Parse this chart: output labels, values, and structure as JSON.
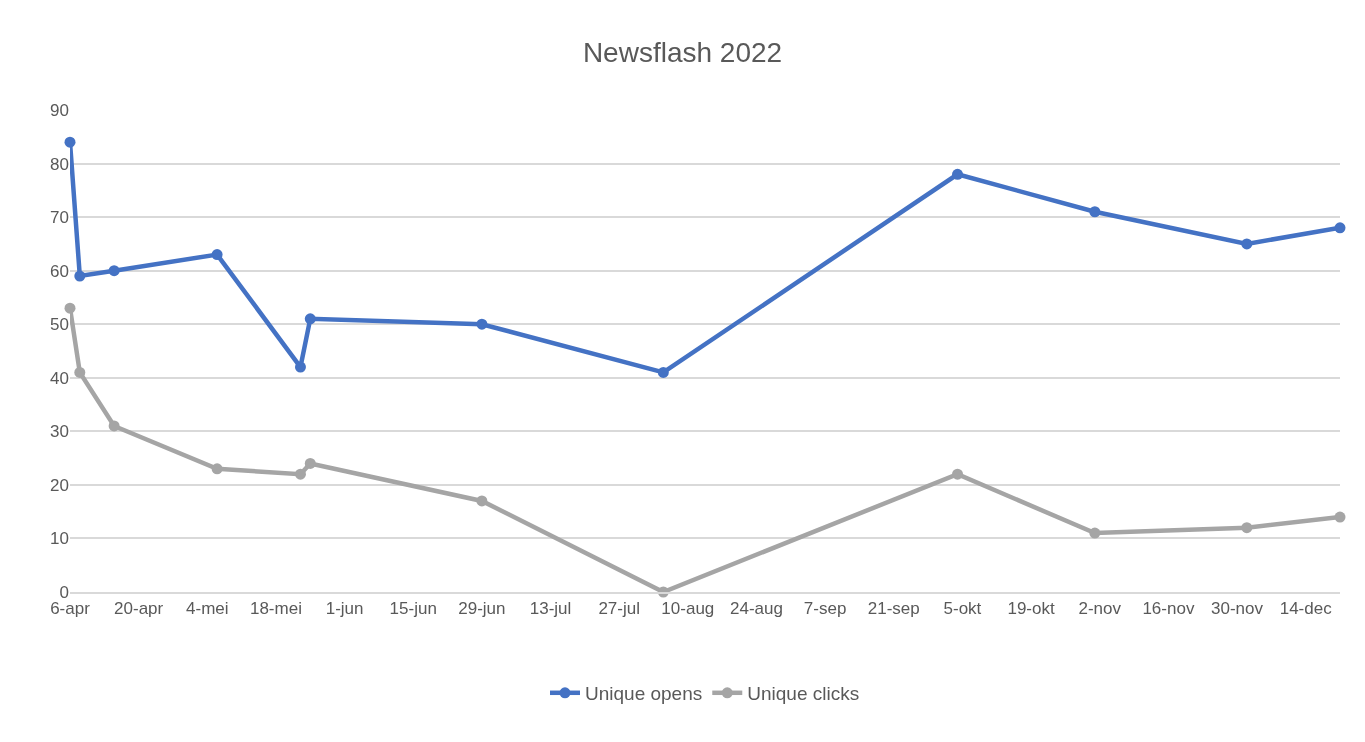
{
  "chart_data": {
    "type": "line",
    "title": "Newsflash 2022",
    "x": [
      "--04-06",
      "--04-08",
      "--04-15",
      "--05-06",
      "--05-23",
      "--05-25",
      "--06-29",
      "--08-05",
      "--10-04",
      "--11-01",
      "--12-02",
      "--12-21"
    ],
    "series": [
      {
        "name": "Unique opens",
        "color": "#4472c4",
        "values": [
          84,
          59,
          60,
          63,
          42,
          51,
          50,
          41,
          78,
          71,
          65,
          68
        ]
      },
      {
        "name": "Unique clicks",
        "color": "#a5a5a5",
        "values": [
          53,
          41,
          31,
          23,
          22,
          24,
          17,
          0,
          22,
          11,
          12,
          14
        ]
      }
    ],
    "xlim": [
      "--04-06",
      "--12-21"
    ],
    "xticks": [
      {
        "value": "--04-06",
        "label": "6-apr"
      },
      {
        "value": "--04-20",
        "label": "20-apr"
      },
      {
        "value": "--05-04",
        "label": "4-mei"
      },
      {
        "value": "--05-18",
        "label": "18-mei"
      },
      {
        "value": "--06-01",
        "label": "1-jun"
      },
      {
        "value": "--06-15",
        "label": "15-jun"
      },
      {
        "value": "--06-29",
        "label": "29-jun"
      },
      {
        "value": "--07-13",
        "label": "13-jul"
      },
      {
        "value": "--07-27",
        "label": "27-jul"
      },
      {
        "value": "--08-10",
        "label": "10-aug"
      },
      {
        "value": "--08-24",
        "label": "24-aug"
      },
      {
        "value": "--09-07",
        "label": "7-sep"
      },
      {
        "value": "--09-21",
        "label": "21-sep"
      },
      {
        "value": "--10-05",
        "label": "5-okt"
      },
      {
        "value": "--10-19",
        "label": "19-okt"
      },
      {
        "value": "--11-02",
        "label": "2-nov"
      },
      {
        "value": "--11-16",
        "label": "16-nov"
      },
      {
        "value": "--11-30",
        "label": "30-nov"
      },
      {
        "value": "--12-14",
        "label": "14-dec"
      }
    ],
    "ylim": [
      0,
      90
    ],
    "yticks": [
      0,
      10,
      20,
      30,
      40,
      50,
      60,
      70,
      80,
      90
    ],
    "grid": "y",
    "legend": "bottom",
    "marker": "circle",
    "line_style": "solid"
  }
}
